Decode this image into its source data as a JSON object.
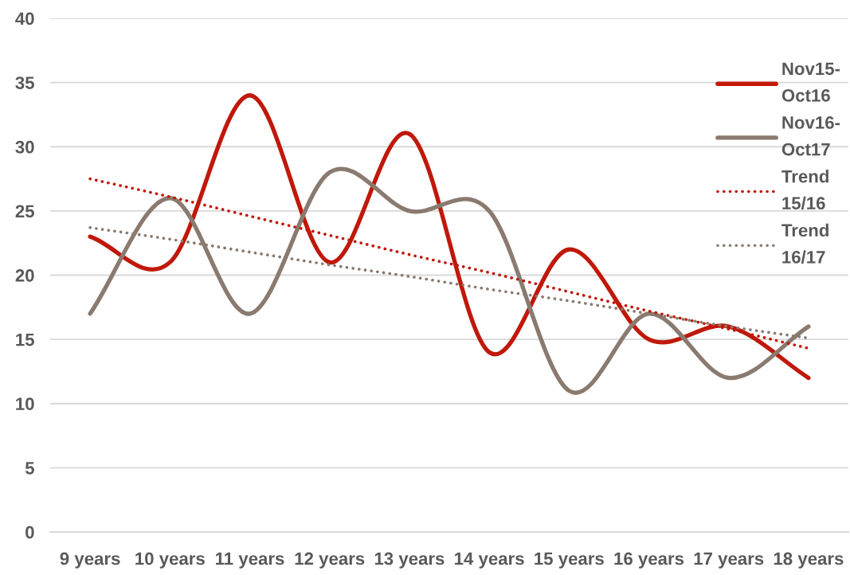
{
  "chart_data": {
    "type": "line",
    "categories": [
      "9 years",
      "10 years",
      "11 years",
      "12 years",
      "13 years",
      "14 years",
      "15 years",
      "16 years",
      "17 years",
      "18 years"
    ],
    "series": [
      {
        "name": "Nov15-Oct16",
        "color": "#c0180a",
        "line_style": "solid",
        "values": [
          23,
          21,
          34,
          21,
          31,
          14,
          22,
          15,
          16,
          12
        ]
      },
      {
        "name": "Nov16-Oct17",
        "color": "#8a7a6f",
        "line_style": "solid",
        "values": [
          17,
          26,
          17,
          28,
          25,
          25,
          11,
          17,
          12,
          16
        ]
      },
      {
        "name": "Trend 15/16",
        "color": "#c0180a",
        "line_style": "dotted",
        "values": [
          27.5,
          26.1,
          24.6,
          23.1,
          21.6,
          20.2,
          18.7,
          17.2,
          15.8,
          14.3
        ]
      },
      {
        "name": "Trend 16/17",
        "color": "#8a7a6f",
        "line_style": "dotted",
        "values": [
          23.7,
          22.8,
          21.8,
          20.8,
          19.9,
          18.9,
          18.0,
          17.0,
          16.0,
          15.1
        ]
      }
    ],
    "ylim": [
      0,
      40
    ],
    "yticks": [
      0,
      5,
      10,
      15,
      20,
      25,
      30,
      35,
      40
    ],
    "grid": "y",
    "legend": "top right"
  }
}
